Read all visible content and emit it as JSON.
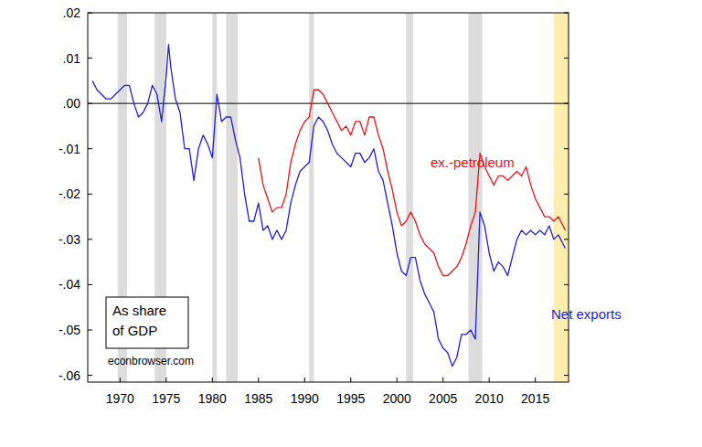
{
  "chart_data": {
    "type": "line",
    "annotations": {
      "box": [
        "As share",
        "of GDP"
      ],
      "credit": "econbrowser.com"
    },
    "x": [
      1967,
      1967.5,
      1968,
      1968.5,
      1969,
      1969.5,
      1970,
      1970.5,
      1971,
      1971.5,
      1972,
      1972.5,
      1973,
      1973.5,
      1974,
      1974.5,
      1975,
      1975.25,
      1975.5,
      1976,
      1976.5,
      1977,
      1977.5,
      1978,
      1978.5,
      1979,
      1979.5,
      1980,
      1980.5,
      1981,
      1981.5,
      1982,
      1982.5,
      1983,
      1983.5,
      1984,
      1984.5,
      1985,
      1985.5,
      1986,
      1986.5,
      1987,
      1987.5,
      1988,
      1988.5,
      1989,
      1989.5,
      1990,
      1990.5,
      1991,
      1991.5,
      1992,
      1992.5,
      1993,
      1993.5,
      1994,
      1994.5,
      1995,
      1995.5,
      1996,
      1996.5,
      1997,
      1997.5,
      1998,
      1998.5,
      1999,
      1999.5,
      2000,
      2000.5,
      2001,
      2001.5,
      2002,
      2002.5,
      2003,
      2003.5,
      2004,
      2004.5,
      2005,
      2005.5,
      2006,
      2006.5,
      2007,
      2007.5,
      2008,
      2008.5,
      2009,
      2009.5,
      2010,
      2010.5,
      2011,
      2011.5,
      2012,
      2012.5,
      2013,
      2013.5,
      2014,
      2014.5,
      2015,
      2015.5,
      2016,
      2016.5,
      2017,
      2017.5,
      2018,
      2018.25
    ],
    "series": [
      {
        "name": "Net exports",
        "color": "#1f1fe0",
        "values": [
          0.005,
          0.003,
          0.002,
          0.001,
          0.001,
          0.002,
          0.003,
          0.004,
          0.004,
          0.0,
          -0.003,
          -0.002,
          0.0,
          0.004,
          0.002,
          -0.004,
          0.006,
          0.013,
          0.008,
          0.001,
          -0.002,
          -0.01,
          -0.01,
          -0.017,
          -0.01,
          -0.007,
          -0.009,
          -0.012,
          0.002,
          -0.004,
          -0.003,
          -0.003,
          -0.008,
          -0.012,
          -0.02,
          -0.026,
          -0.026,
          -0.022,
          -0.028,
          -0.027,
          -0.03,
          -0.028,
          -0.03,
          -0.028,
          -0.022,
          -0.018,
          -0.015,
          -0.014,
          -0.013,
          -0.005,
          -0.003,
          -0.004,
          -0.006,
          -0.009,
          -0.011,
          -0.012,
          -0.013,
          -0.014,
          -0.011,
          -0.011,
          -0.013,
          -0.012,
          -0.01,
          -0.015,
          -0.017,
          -0.022,
          -0.027,
          -0.033,
          -0.037,
          -0.038,
          -0.034,
          -0.034,
          -0.039,
          -0.042,
          -0.044,
          -0.046,
          -0.052,
          -0.054,
          -0.055,
          -0.058,
          -0.056,
          -0.051,
          -0.051,
          -0.05,
          -0.052,
          -0.024,
          -0.027,
          -0.033,
          -0.037,
          -0.035,
          -0.036,
          -0.038,
          -0.034,
          -0.03,
          -0.028,
          -0.029,
          -0.028,
          -0.029,
          -0.028,
          -0.029,
          -0.027,
          -0.03,
          -0.029,
          -0.031,
          -0.032
        ]
      },
      {
        "name": "ex.-petroleum",
        "color": "#e8161b",
        "values": [
          null,
          null,
          null,
          null,
          null,
          null,
          null,
          null,
          null,
          null,
          null,
          null,
          null,
          null,
          null,
          null,
          null,
          null,
          null,
          null,
          null,
          null,
          null,
          null,
          null,
          null,
          null,
          null,
          null,
          null,
          null,
          null,
          null,
          null,
          null,
          null,
          null,
          -0.012,
          -0.018,
          -0.021,
          -0.024,
          -0.023,
          -0.023,
          -0.02,
          -0.013,
          -0.009,
          -0.006,
          -0.004,
          -0.003,
          0.003,
          0.003,
          0.002,
          0.0,
          -0.002,
          -0.004,
          -0.006,
          -0.005,
          -0.007,
          -0.004,
          -0.004,
          -0.007,
          -0.003,
          -0.003,
          -0.007,
          -0.01,
          -0.015,
          -0.019,
          -0.024,
          -0.027,
          -0.026,
          -0.024,
          -0.026,
          -0.029,
          -0.031,
          -0.032,
          -0.033,
          -0.036,
          -0.038,
          -0.038,
          -0.037,
          -0.036,
          -0.034,
          -0.031,
          -0.027,
          -0.024,
          -0.011,
          -0.014,
          -0.016,
          -0.018,
          -0.016,
          -0.016,
          -0.017,
          -0.016,
          -0.015,
          -0.016,
          -0.014,
          -0.018,
          -0.021,
          -0.023,
          -0.025,
          -0.025,
          -0.026,
          -0.025,
          -0.027,
          -0.028
        ]
      }
    ],
    "xlim": [
      1966.5,
      2018.6
    ],
    "xticks": [
      1970,
      1975,
      1980,
      1985,
      1990,
      1995,
      2000,
      2005,
      2010,
      2015
    ],
    "ylim": [
      -0.0615,
      0.02
    ],
    "yticks": [
      {
        "value": 0.02,
        "label": ".02"
      },
      {
        "value": 0.01,
        "label": ".01"
      },
      {
        "value": 0,
        "label": ".00"
      },
      {
        "value": -0.01,
        "label": "-.01"
      },
      {
        "value": -0.02,
        "label": "-.02"
      },
      {
        "value": -0.03,
        "label": "-.03"
      },
      {
        "value": -0.04,
        "label": "-.04"
      },
      {
        "value": -0.05,
        "label": "-.05"
      },
      {
        "value": -0.06,
        "label": "-.06"
      }
    ],
    "shaded_periods": [
      [
        1969.75,
        1970.75
      ],
      [
        1973.75,
        1975.0
      ],
      [
        1980.0,
        1980.5
      ],
      [
        1981.5,
        1982.75
      ],
      [
        1990.5,
        1991.0
      ],
      [
        2001.0,
        2001.75
      ],
      [
        2007.75,
        2009.25
      ]
    ],
    "highlight_period": [
      2017.0,
      2018.6
    ],
    "grid": false
  }
}
